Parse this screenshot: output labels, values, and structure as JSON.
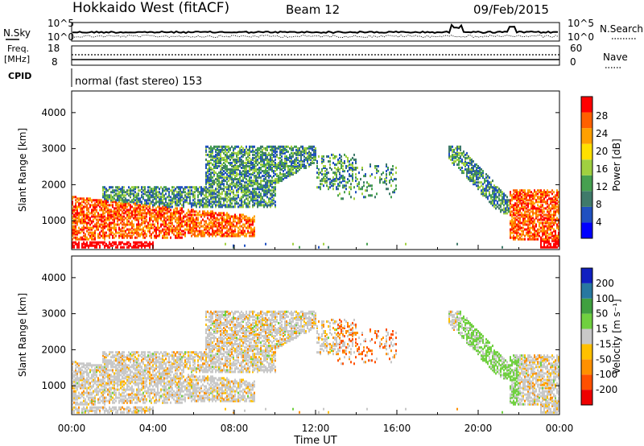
{
  "header": {
    "title": "Hokkaido West (fitACF)",
    "beam": "Beam 12",
    "date": "09/Feb/2015"
  },
  "sky_panel": {
    "left_label": "N.Sky",
    "right_label": "N.Search",
    "tick_top": "10^5",
    "tick_bottom": "10^0"
  },
  "freq_panel": {
    "left_label_line1": "Freq.",
    "left_label_line2": "[MHz]",
    "left_tick_top": "18",
    "left_tick_bottom": "8",
    "right_label": "Nave",
    "right_tick_top": "60",
    "right_tick_bottom": "0"
  },
  "cpid_panel": {
    "label": "CPID",
    "text": "normal (fast stereo) 153"
  },
  "colors": {
    "power": [
      "#0000ff",
      "#2050c0",
      "#3f7a6a",
      "#46a050",
      "#a0d040",
      "#ffe000",
      "#ffa000",
      "#ff6000",
      "#ff0000"
    ],
    "velocity": [
      "#ee0000",
      "#ff5000",
      "#ff9000",
      "#ffc000",
      "#c8c8c8",
      "#70d040",
      "#40a040",
      "#2878a0",
      "#1020c0"
    ]
  },
  "chart_data": [
    {
      "type": "heatmap",
      "name": "power",
      "ylabel": "Slant Range [km]",
      "yticks": [
        "1000",
        "2000",
        "3000",
        "4000"
      ],
      "ylim": [
        200,
        4600
      ],
      "xlim": [
        0,
        24
      ],
      "colorbar_label": "Power [dB]",
      "colorbar_ticks": [
        "4",
        "8",
        "12",
        "16",
        "20",
        "24",
        "28"
      ],
      "colorbar_range": [
        0,
        30
      ]
    },
    {
      "type": "heatmap",
      "name": "velocity",
      "ylabel": "Slant Range [km]",
      "yticks": [
        "1000",
        "2000",
        "3000",
        "4000"
      ],
      "ylim": [
        200,
        4600
      ],
      "xlim": [
        0,
        24
      ],
      "xticks": [
        "00:00",
        "04:00",
        "08:00",
        "12:00",
        "16:00",
        "20:00",
        "00:00"
      ],
      "xlabel": "Time UT",
      "colorbar_label": "Velocity [m s⁻¹]",
      "colorbar_ticks": [
        "200",
        "100",
        "50",
        "15",
        "-15",
        "-50",
        "-100",
        "-200"
      ]
    }
  ]
}
